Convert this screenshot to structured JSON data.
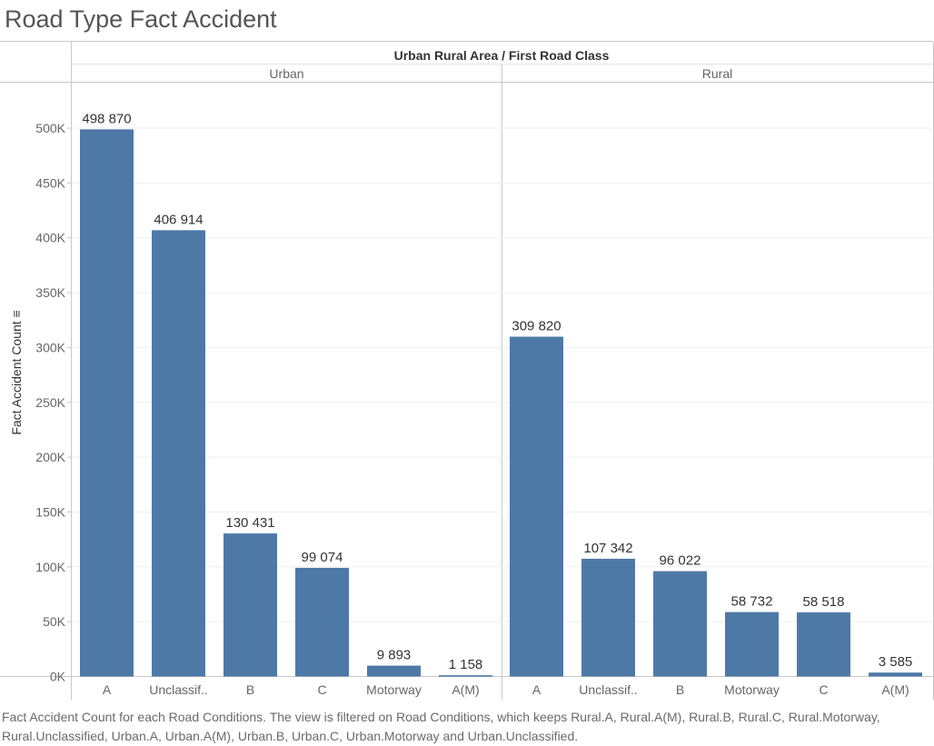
{
  "title": "Road Type Fact Accident",
  "header_title": "Urban Rural Area  /  First Road Class",
  "y_axis_label": "Fact Accident Count ≡",
  "caption": "Fact Accident Count for each Road Conditions. The view is filtered on Road Conditions, which keeps Rural.A, Rural.A(M), Rural.B, Rural.C, Rural.Motorway, Rural.Unclassified, Urban.A, Urban.A(M), Urban.B, Urban.C, Urban.Motorway and Urban.Unclassified.",
  "colors": {
    "bar": "#4e79a7",
    "grid": "#efefef",
    "axis": "#c8c8c8",
    "text": "#333333",
    "muted": "#666666"
  },
  "chart_data": {
    "type": "bar",
    "title": "Road Type Fact Accident",
    "ylabel": "Fact Accident Count",
    "ylim": [
      0,
      500000
    ],
    "yticks": [
      0,
      50000,
      100000,
      150000,
      200000,
      250000,
      300000,
      350000,
      400000,
      450000,
      500000
    ],
    "ytick_labels": [
      "0K",
      "50K",
      "100K",
      "150K",
      "200K",
      "250K",
      "300K",
      "350K",
      "400K",
      "450K",
      "500K"
    ],
    "grid": true,
    "panels": [
      {
        "name": "Urban",
        "categories": [
          "A",
          "Unclassif..",
          "B",
          "C",
          "Motorway",
          "A(M)"
        ],
        "values": [
          498870,
          406914,
          130431,
          99074,
          9893,
          1158
        ],
        "labels": [
          "498 870",
          "406 914",
          "130 431",
          "99 074",
          "9 893",
          "1 158"
        ]
      },
      {
        "name": "Rural",
        "categories": [
          "A",
          "Unclassif..",
          "B",
          "Motorway",
          "C",
          "A(M)"
        ],
        "values": [
          309820,
          107342,
          96022,
          58732,
          58518,
          3585
        ],
        "labels": [
          "309 820",
          "107 342",
          "96 022",
          "58 732",
          "58 518",
          "3 585"
        ]
      }
    ]
  }
}
